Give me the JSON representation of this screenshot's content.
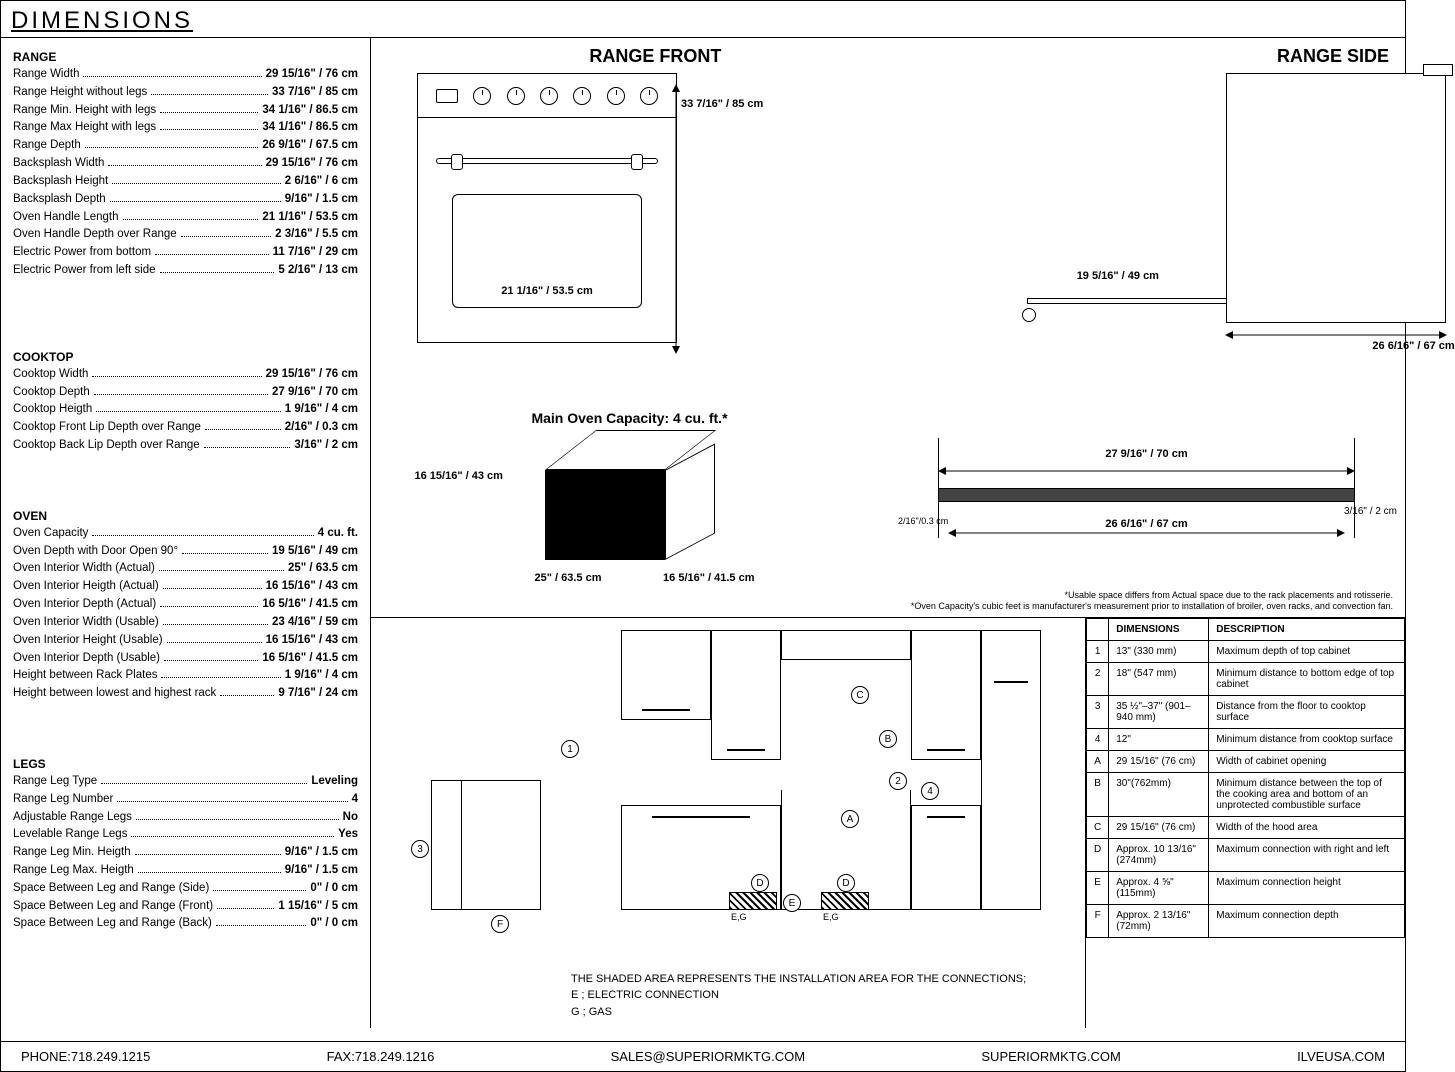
{
  "title": "DIMENSIONS",
  "sections": {
    "range": {
      "head": "RANGE",
      "rows": [
        {
          "label": "Range Width",
          "val": "29 15/16\" / 76 cm"
        },
        {
          "label": "Range Height without legs",
          "val": "33 7/16\" / 85 cm"
        },
        {
          "label": "Range Min. Height with legs",
          "val": "34 1/16\" / 86.5 cm"
        },
        {
          "label": "Range Max Height with legs",
          "val": "34 1/16\" / 86.5 cm"
        },
        {
          "label": "Range Depth",
          "val": "26 9/16\" / 67.5 cm"
        },
        {
          "label": "Backsplash Width",
          "val": "29 15/16\" / 76 cm"
        },
        {
          "label": "Backsplash Height",
          "val": "2 6/16\" / 6 cm"
        },
        {
          "label": "Backsplash Depth",
          "val": "9/16\" / 1.5 cm"
        },
        {
          "label": "Oven Handle Length",
          "val": "21 1/16\" / 53.5 cm"
        },
        {
          "label": "Oven Handle Depth over Range",
          "val": "2 3/16\" / 5.5 cm"
        },
        {
          "label": "Electric Power from bottom",
          "val": "11 7/16\" / 29 cm"
        },
        {
          "label": "Electric Power from left side",
          "val": "5 2/16\" / 13 cm"
        }
      ]
    },
    "cooktop": {
      "head": "COOKTOP",
      "rows": [
        {
          "label": "Cooktop Width",
          "val": "29 15/16\" / 76 cm"
        },
        {
          "label": "Cooktop Depth",
          "val": "27 9/16\" / 70 cm"
        },
        {
          "label": "Cooktop Heigth",
          "val": "1 9/16\" / 4 cm"
        },
        {
          "label": "Cooktop Front Lip Depth over Range",
          "val": "2/16\" / 0.3 cm"
        },
        {
          "label": "Cooktop Back Lip Depth over Range",
          "val": "3/16\" / 2 cm"
        }
      ]
    },
    "oven": {
      "head": "OVEN",
      "rows": [
        {
          "label": "Oven Capacity",
          "val": "4 cu. ft."
        },
        {
          "label": "Oven Depth with Door Open 90°",
          "val": "19 5/16\" / 49 cm"
        },
        {
          "label": "Oven Interior Width (Actual)",
          "val": "25\" / 63.5 cm"
        },
        {
          "label": "Oven Interior Heigth (Actual)",
          "val": "16 15/16\" / 43 cm"
        },
        {
          "label": "Oven Interior Depth (Actual)",
          "val": "16 5/16\" / 41.5 cm"
        },
        {
          "label": "Oven Interior Width (Usable)",
          "val": "23 4/16\" / 59 cm"
        },
        {
          "label": "Oven Interior Height (Usable)",
          "val": "16 15/16\" / 43 cm"
        },
        {
          "label": "Oven Interior Depth (Usable)",
          "val": "16 5/16\" / 41.5 cm"
        },
        {
          "label": "Height between Rack Plates",
          "val": "1 9/16\" / 4 cm"
        },
        {
          "label": "Height between lowest and highest rack",
          "val": "9 7/16\" / 24 cm"
        }
      ]
    },
    "legs": {
      "head": "LEGS",
      "rows": [
        {
          "label": "Range Leg Type",
          "val": "Leveling"
        },
        {
          "label": "Range Leg Number",
          "val": "4"
        },
        {
          "label": "Adjustable Range Legs",
          "val": "No"
        },
        {
          "label": "Levelable Range Legs",
          "val": "Yes"
        },
        {
          "label": "Range Leg Min. Heigth",
          "val": "9/16\" / 1.5 cm"
        },
        {
          "label": "Range Leg Max. Heigth",
          "val": "9/16\" / 1.5 cm"
        },
        {
          "label": "Space Between Leg and Range (Side)",
          "val": "0\" / 0 cm"
        },
        {
          "label": "Space Between Leg and Range (Front)",
          "val": "1 15/16\" / 5 cm"
        },
        {
          "label": "Space Between Leg and Range (Back)",
          "val": "0\" / 0 cm"
        }
      ]
    }
  },
  "front": {
    "title": "RANGE FRONT",
    "heightDim": "33 7/16\" / 85 cm",
    "handleDim": "21 1/16\" / 53.5 cm"
  },
  "side": {
    "title": "RANGE SIDE",
    "doorDim": "19 5/16\" / 49 cm",
    "depthDim": "26 6/16\" / 67 cm"
  },
  "ovencap": {
    "title": "Main Oven Capacity: 4 cu. ft.*",
    "h": "16 15/16\" / 43 cm",
    "w": "25\" / 63.5 cm",
    "d": "16 5/16\" / 41.5 cm"
  },
  "ctside": {
    "top": "27 9/16\" / 70 cm",
    "mid": "26 6/16\" / 67 cm",
    "l": "2/16\"/0.3 cm",
    "r": "3/16\" / 2 cm"
  },
  "footnotes": {
    "a": "*Usable space differs from Actual space due to the rack placements and rotisserie.",
    "b": "*Oven Capacity's cubic feet is manufacturer's measurement prior to installation of broiler, oven racks, and convection fan."
  },
  "dimtable": {
    "h1": "DIMENSIONS",
    "h2": "DESCRIPTION",
    "rows": [
      {
        "k": "1",
        "d": "13\" (330 mm)",
        "desc": "Maximum depth of top cabinet"
      },
      {
        "k": "2",
        "d": "18\" (547 mm)",
        "desc": "Minimum distance to bottom edge of top cabinet"
      },
      {
        "k": "3",
        "d": "35 ½\"–37\" (901–940 mm)",
        "desc": "Distance from the floor to cooktop surface"
      },
      {
        "k": "4",
        "d": "12\"",
        "desc": "Minimum distance from cooktop surface"
      },
      {
        "k": "A",
        "d": "29 15/16\" (76 cm)",
        "desc": "Width of cabinet opening"
      },
      {
        "k": "B",
        "d": "30\"(762mm)",
        "desc": "Minimum distance between the top of the cooking area and bottom of an unprotected combustible surface"
      },
      {
        "k": "C",
        "d": "29 15/16\" (76 cm)",
        "desc": "Width of the hood area"
      },
      {
        "k": "D",
        "d": "Approx. 10 13/16\" (274mm)",
        "desc": "Maximum connection with right and left"
      },
      {
        "k": "E",
        "d": "Approx. 4 ⅝\" (115mm)",
        "desc": "Maximum connection height"
      },
      {
        "k": "F",
        "d": "Approx. 2 13/16\" (72mm)",
        "desc": "Maximum connection depth"
      }
    ]
  },
  "install": {
    "note1": "THE SHADED AREA REPRESENTS THE INSTALLATION AREA FOR THE CONNECTIONS;",
    "note2": "E ; ELECTRIC CONNECTION",
    "note3": "G ; GAS"
  },
  "footer": {
    "phone": "PHONE:718.249.1215",
    "fax": "FAX:718.249.1216",
    "email": "SALES@SUPERIORMKTG.COM",
    "site1": "SUPERIORMKTG.COM",
    "site2": "ILVEUSA.COM"
  }
}
